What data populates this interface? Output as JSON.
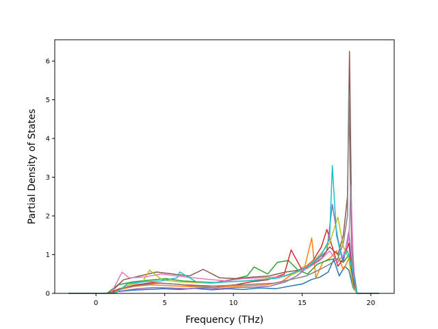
{
  "chart_data": {
    "type": "line",
    "title": "",
    "xlabel": "Frequency (THz)",
    "ylabel": "Partial Density of States",
    "xlim": [
      -3.0,
      21.7
    ],
    "ylim": [
      0,
      6.55
    ],
    "xticks": [
      0,
      5,
      10,
      15,
      20
    ],
    "yticks": [
      0,
      1,
      2,
      3,
      4,
      5,
      6
    ],
    "xtick_labels": [
      "0",
      "5",
      "10",
      "15",
      "20"
    ],
    "ytick_labels": [
      "0",
      "1",
      "2",
      "3",
      "4",
      "5",
      "6"
    ],
    "grid": false,
    "legend": "none",
    "palette": [
      "#1f77b4",
      "#ff7f0e",
      "#2ca02c",
      "#d62728",
      "#9467bd",
      "#8c564b",
      "#e377c2",
      "#7f7f7f",
      "#bcbd22",
      "#17becf"
    ],
    "series": [
      {
        "color": "#1f77b4",
        "x": [
          -2.0,
          0.6,
          1.4,
          2.6,
          3.7,
          4.9,
          6.1,
          7.2,
          8.4,
          9.6,
          10.7,
          11.9,
          13.1,
          14.3,
          15.0,
          15.7,
          16.3,
          16.9,
          17.3,
          17.7,
          18.1,
          18.4,
          18.7,
          19.0,
          20.6
        ],
        "y": [
          0,
          0,
          0.04,
          0.08,
          0.1,
          0.12,
          0.1,
          0.13,
          0.09,
          0.12,
          0.1,
          0.14,
          0.12,
          0.2,
          0.24,
          0.36,
          0.42,
          0.55,
          0.88,
          0.45,
          0.7,
          0.6,
          0.15,
          0,
          0
        ]
      },
      {
        "color": "#ff7f0e",
        "x": [
          -2.0,
          0.7,
          1.5,
          2.8,
          4.0,
          5.2,
          6.4,
          7.6,
          8.8,
          10.0,
          11.2,
          12.4,
          13.5,
          14.5,
          15.2,
          15.7,
          16.0,
          16.5,
          17.0,
          17.5,
          18.0,
          18.4,
          18.7,
          19.0,
          20.6
        ],
        "y": [
          0,
          0,
          0.08,
          0.18,
          0.22,
          0.2,
          0.18,
          0.16,
          0.15,
          0.18,
          0.2,
          0.22,
          0.3,
          0.55,
          0.7,
          1.43,
          0.4,
          0.8,
          0.9,
          1.1,
          0.6,
          0.9,
          0.2,
          0,
          0
        ]
      },
      {
        "color": "#2ca02c",
        "x": [
          -2.0,
          0.8,
          1.6,
          2.7,
          3.9,
          5.1,
          6.3,
          7.5,
          8.7,
          9.9,
          11.0,
          11.5,
          12.5,
          13.2,
          14.0,
          14.7,
          15.4,
          16.1,
          16.8,
          17.4,
          18.0,
          18.4,
          18.7,
          19.0,
          20.6
        ],
        "y": [
          0,
          0,
          0.22,
          0.3,
          0.34,
          0.38,
          0.32,
          0.3,
          0.28,
          0.36,
          0.45,
          0.68,
          0.5,
          0.8,
          0.85,
          0.6,
          0.5,
          0.75,
          0.85,
          0.9,
          0.8,
          1.0,
          0.25,
          0,
          0
        ]
      },
      {
        "color": "#d62728",
        "x": [
          -2.0,
          0.9,
          1.7,
          2.9,
          4.1,
          5.3,
          6.5,
          7.7,
          8.9,
          10.1,
          11.3,
          12.5,
          13.7,
          14.2,
          15.0,
          15.8,
          16.4,
          16.8,
          17.2,
          17.6,
          18.0,
          18.4,
          18.7,
          19.0,
          20.6
        ],
        "y": [
          0,
          0,
          0.12,
          0.22,
          0.28,
          0.25,
          0.22,
          0.2,
          0.18,
          0.22,
          0.3,
          0.35,
          0.5,
          1.12,
          0.6,
          0.85,
          1.2,
          1.65,
          1.2,
          0.7,
          0.9,
          1.3,
          0.3,
          0,
          0
        ]
      },
      {
        "color": "#9467bd",
        "x": [
          -2.0,
          1.0,
          1.8,
          3.0,
          4.2,
          5.4,
          6.6,
          7.8,
          9.0,
          10.2,
          11.4,
          12.6,
          13.8,
          14.6,
          15.5,
          16.2,
          16.8,
          17.2,
          17.6,
          18.0,
          18.4,
          18.7,
          19.0,
          20.6
        ],
        "y": [
          0,
          0,
          0.06,
          0.12,
          0.15,
          0.14,
          0.12,
          0.14,
          0.12,
          0.15,
          0.16,
          0.18,
          0.3,
          0.45,
          0.7,
          0.9,
          1.1,
          2.3,
          1.4,
          0.8,
          1.6,
          0.4,
          0,
          0
        ]
      },
      {
        "color": "#8c564b",
        "x": [
          -2.0,
          1.0,
          2.0,
          3.2,
          4.4,
          5.6,
          6.8,
          7.8,
          9.0,
          10.2,
          11.4,
          12.6,
          13.8,
          14.8,
          15.6,
          16.4,
          17.0,
          17.6,
          18.0,
          18.3,
          18.45,
          18.6,
          18.75,
          19.0,
          20.6
        ],
        "y": [
          0,
          0,
          0.35,
          0.45,
          0.55,
          0.5,
          0.45,
          0.62,
          0.4,
          0.38,
          0.42,
          0.45,
          0.55,
          0.6,
          0.7,
          0.9,
          1.2,
          1.0,
          1.5,
          2.5,
          6.25,
          2.0,
          0.6,
          0,
          0
        ]
      },
      {
        "color": "#e377c2",
        "x": [
          -2.0,
          1.1,
          1.9,
          2.4,
          3.5,
          4.7,
          5.9,
          7.1,
          8.3,
          9.5,
          10.7,
          11.9,
          13.1,
          14.3,
          15.4,
          16.3,
          17.0,
          17.6,
          18.0,
          18.4,
          18.55,
          18.7,
          18.85,
          19.0,
          20.6
        ],
        "y": [
          0,
          0,
          0.55,
          0.4,
          0.42,
          0.5,
          0.45,
          0.4,
          0.36,
          0.32,
          0.38,
          0.4,
          0.42,
          0.5,
          0.65,
          0.85,
          1.1,
          0.8,
          1.0,
          1.4,
          2.8,
          1.0,
          0.2,
          0,
          0
        ]
      },
      {
        "color": "#7f7f7f",
        "x": [
          -2.0,
          1.2,
          2.1,
          3.3,
          4.5,
          5.7,
          6.9,
          8.1,
          9.3,
          10.5,
          11.7,
          12.9,
          14.1,
          15.3,
          16.2,
          17.0,
          17.6,
          18.0,
          18.3,
          18.4,
          18.5,
          18.6,
          18.8,
          19.0,
          20.6
        ],
        "y": [
          0,
          0,
          0.15,
          0.22,
          0.26,
          0.24,
          0.2,
          0.18,
          0.2,
          0.22,
          0.24,
          0.26,
          0.35,
          0.45,
          0.6,
          0.75,
          0.9,
          1.3,
          2.0,
          5.3,
          3.0,
          1.2,
          0.3,
          0,
          0
        ]
      },
      {
        "color": "#bcbd22",
        "x": [
          -2.0,
          1.3,
          2.2,
          3.4,
          3.9,
          4.8,
          6.0,
          7.2,
          8.4,
          9.6,
          10.8,
          12.0,
          13.2,
          14.4,
          15.4,
          16.3,
          17.0,
          17.6,
          18.0,
          18.4,
          18.7,
          19.0,
          20.6
        ],
        "y": [
          0,
          0,
          0.2,
          0.3,
          0.6,
          0.35,
          0.3,
          0.28,
          0.26,
          0.3,
          0.32,
          0.36,
          0.4,
          0.5,
          0.7,
          1.0,
          1.3,
          1.97,
          1.2,
          0.9,
          0.2,
          0,
          0
        ]
      },
      {
        "color": "#17becf",
        "x": [
          -2.0,
          1.4,
          2.3,
          3.5,
          4.7,
          5.9,
          6.1,
          7.3,
          8.5,
          9.7,
          10.9,
          12.1,
          13.3,
          14.5,
          15.5,
          16.4,
          17.0,
          17.2,
          17.5,
          17.9,
          18.3,
          18.6,
          18.9,
          19.0,
          20.6
        ],
        "y": [
          0,
          0,
          0.25,
          0.3,
          0.32,
          0.4,
          0.55,
          0.3,
          0.28,
          0.3,
          0.32,
          0.35,
          0.4,
          0.55,
          0.7,
          1.0,
          1.4,
          3.3,
          1.5,
          0.9,
          1.1,
          0.7,
          0.2,
          0,
          0
        ]
      }
    ]
  }
}
